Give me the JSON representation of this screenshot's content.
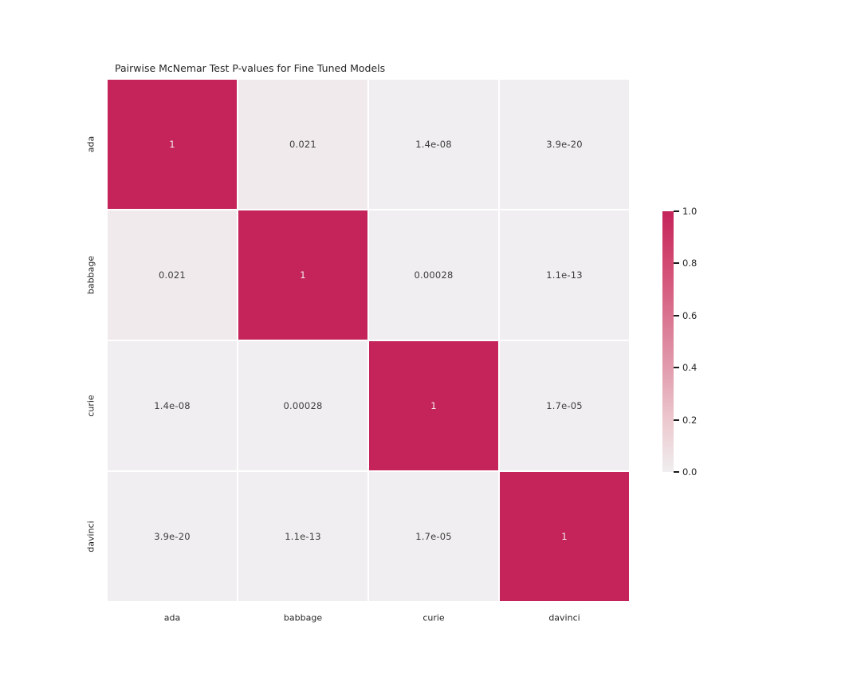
{
  "chart_data": {
    "type": "heatmap",
    "title": "Pairwise McNemar Test P-values for Fine Tuned Models",
    "x_categories": [
      "ada",
      "babbage",
      "curie",
      "davinci"
    ],
    "y_categories": [
      "ada",
      "babbage",
      "curie",
      "davinci"
    ],
    "matrix": [
      [
        1,
        0.021,
        1.4e-08,
        3.9e-20
      ],
      [
        0.021,
        1,
        0.00028,
        1.1e-13
      ],
      [
        1.4e-08,
        0.00028,
        1,
        1.7e-05
      ],
      [
        3.9e-20,
        1.1e-13,
        1.7e-05,
        1
      ]
    ],
    "cell_labels": [
      [
        "1",
        "0.021",
        "1.4e-08",
        "3.9e-20"
      ],
      [
        "0.021",
        "1",
        "0.00028",
        "1.1e-13"
      ],
      [
        "1.4e-08",
        "0.00028",
        "1",
        "1.7e-05"
      ],
      [
        "3.9e-20",
        "1.1e-13",
        "1.7e-05",
        "1"
      ]
    ],
    "value_range": [
      0,
      1
    ],
    "grid": false,
    "legend_position": "right-colorbar",
    "colorbar": {
      "tick_labels": [
        "1.0",
        "0.8",
        "0.6",
        "0.4",
        "0.2",
        "0.0"
      ],
      "tick_values": [
        1.0,
        0.8,
        0.6,
        0.4,
        0.2,
        0.0
      ],
      "gradient_stops": [
        {
          "value": 0.0,
          "color": "#f0eef0"
        },
        {
          "value": 0.2,
          "color": "#ecc8cd"
        },
        {
          "value": 0.4,
          "color": "#e19cac"
        },
        {
          "value": 0.6,
          "color": "#d97390"
        },
        {
          "value": 0.8,
          "color": "#d24a72"
        },
        {
          "value": 1.0,
          "color": "#c4245a"
        }
      ]
    },
    "colors": {
      "cell_high": "#c4245a",
      "cell_low": "#efedef",
      "annotation_on_dark": "#f3eef1",
      "annotation_on_light": "#3d3d3d",
      "axis_text": "#262626",
      "background": "#ffffff"
    }
  }
}
